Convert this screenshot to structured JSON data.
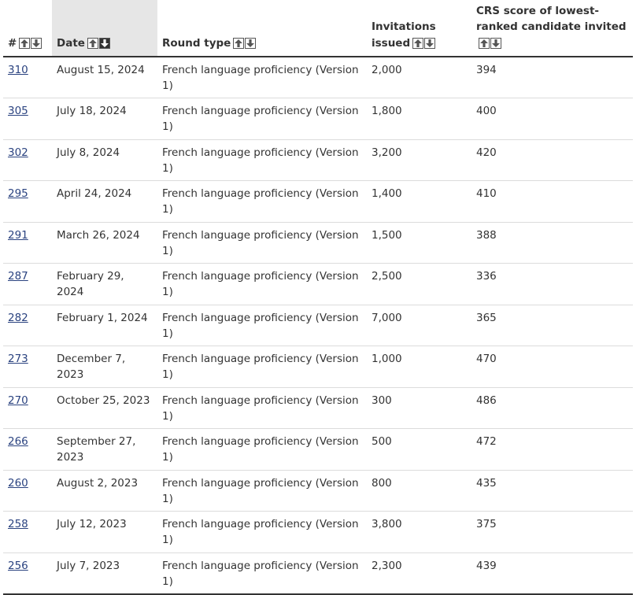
{
  "table": {
    "headers": {
      "number": "#",
      "date": "Date",
      "round_type": "Round type",
      "invitations": "Invitations issued",
      "crs": "CRS score of lowest-ranked candidate invited"
    },
    "sort_icons": {
      "up": "arrow-up-icon",
      "down": "arrow-down-icon"
    },
    "active_sort": {
      "column": "date",
      "direction": "descending"
    },
    "rows": [
      {
        "number": "310",
        "date": "August 15, 2024",
        "round_type": "French language proficiency (Version 1)",
        "invitations": "2,000",
        "crs": "394"
      },
      {
        "number": "305",
        "date": "July 18, 2024",
        "round_type": "French language proficiency (Version 1)",
        "invitations": "1,800",
        "crs": "400"
      },
      {
        "number": "302",
        "date": "July 8, 2024",
        "round_type": "French language proficiency (Version 1)",
        "invitations": "3,200",
        "crs": "420"
      },
      {
        "number": "295",
        "date": "April 24, 2024",
        "round_type": "French language proficiency (Version 1)",
        "invitations": "1,400",
        "crs": "410"
      },
      {
        "number": "291",
        "date": "March 26, 2024",
        "round_type": "French language proficiency (Version 1)",
        "invitations": "1,500",
        "crs": "388"
      },
      {
        "number": "287",
        "date": "February 29, 2024",
        "round_type": "French language proficiency (Version 1)",
        "invitations": "2,500",
        "crs": "336"
      },
      {
        "number": "282",
        "date": "February 1, 2024",
        "round_type": "French language proficiency (Version 1)",
        "invitations": "7,000",
        "crs": "365"
      },
      {
        "number": "273",
        "date": "December 7, 2023",
        "round_type": "French language proficiency (Version 1)",
        "invitations": "1,000",
        "crs": "470"
      },
      {
        "number": "270",
        "date": "October 25, 2023",
        "round_type": "French language proficiency (Version 1)",
        "invitations": "300",
        "crs": "486"
      },
      {
        "number": "266",
        "date": "September 27, 2023",
        "round_type": "French language proficiency (Version 1)",
        "invitations": "500",
        "crs": "472"
      },
      {
        "number": "260",
        "date": "August 2, 2023",
        "round_type": "French language proficiency (Version 1)",
        "invitations": "800",
        "crs": "435"
      },
      {
        "number": "258",
        "date": "July 12, 2023",
        "round_type": "French language proficiency (Version 1)",
        "invitations": "3,800",
        "crs": "375"
      },
      {
        "number": "256",
        "date": "July 7, 2023",
        "round_type": "French language proficiency (Version 1)",
        "invitations": "2,300",
        "crs": "439"
      }
    ]
  },
  "colors": {
    "link": "#2b4380",
    "text": "#333333",
    "sorted_header_bg": "#e6e6e6",
    "row_divider": "#dcdcdc"
  }
}
